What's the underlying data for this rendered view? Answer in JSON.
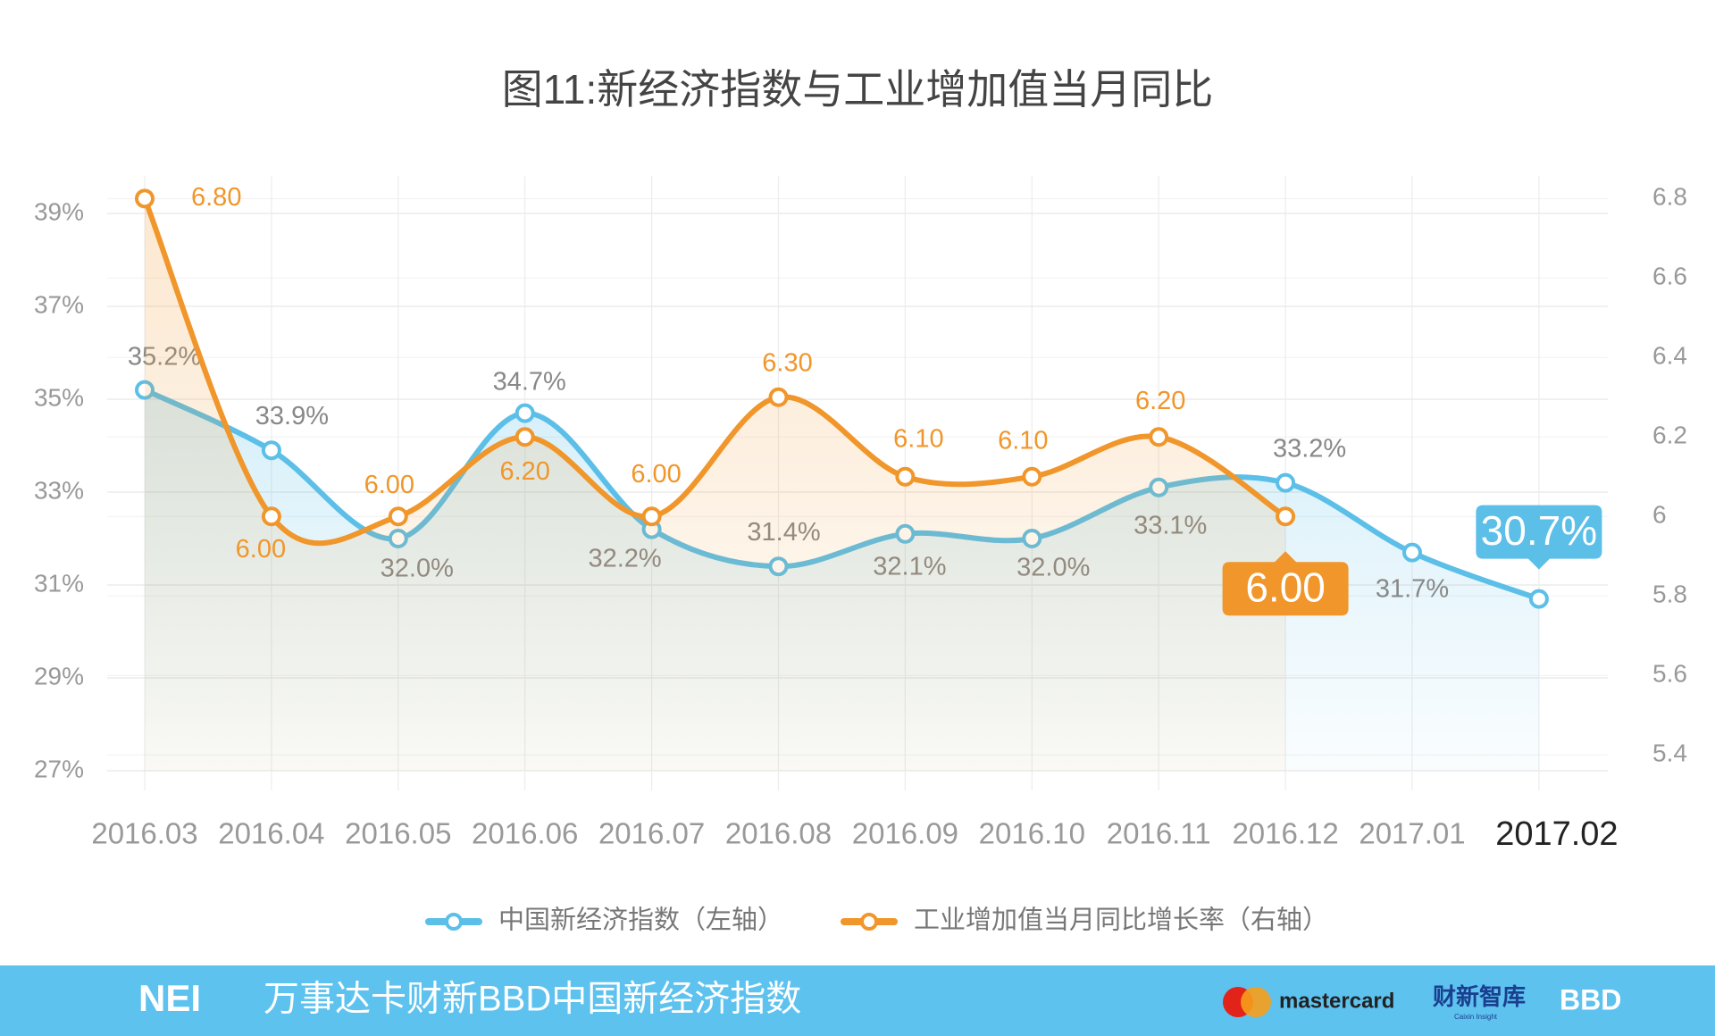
{
  "chart_data": {
    "type": "line",
    "title": "图11:新经济指数与工业增加值当月同比",
    "categories": [
      "2016.03",
      "2016.04",
      "2016.05",
      "2016.06",
      "2016.07",
      "2016.08",
      "2016.09",
      "2016.10",
      "2016.11",
      "2016.12",
      "2017.01",
      "2017.02"
    ],
    "ylim": [
      27,
      39.8
    ],
    "yticks": [
      {
        "value": 27,
        "label": "27%"
      },
      {
        "value": 29,
        "label": "29%"
      },
      {
        "value": 31,
        "label": "31%"
      },
      {
        "value": 33,
        "label": "33%"
      },
      {
        "value": 35,
        "label": "35%"
      },
      {
        "value": 37,
        "label": "37%"
      },
      {
        "value": 39,
        "label": "39%"
      }
    ],
    "y2lim": [
      5.36,
      6.856
    ],
    "y2ticks": [
      5.4,
      5.6,
      5.8,
      6,
      6.2,
      6.4,
      6.6,
      6.8
    ],
    "grid": true,
    "legend": "bottom",
    "series": [
      {
        "name": "中国新经济指数（左轴）",
        "color": "#5bbfe8",
        "axis": "y",
        "values": [
          35.2,
          33.9,
          32.0,
          34.7,
          32.2,
          31.4,
          32.1,
          32.0,
          33.1,
          33.2,
          31.7,
          30.7
        ],
        "value_labels": [
          "35.2%",
          "33.9%",
          "32.0%",
          "34.7%",
          "32.2%",
          "31.4%",
          "32.1%",
          "32.0%",
          "33.1%",
          "33.2%",
          "31.7%",
          "30.7%"
        ]
      },
      {
        "name": "工业增加值当月同比增长率（右轴）",
        "color": "#f0962a",
        "axis": "y2",
        "values": [
          6.8,
          6.0,
          6.0,
          6.2,
          6.0,
          6.3,
          6.1,
          6.1,
          6.2,
          6.0,
          null,
          null
        ],
        "value_labels": [
          "6.80",
          "6.00",
          "6.00",
          "6.20",
          "6.00",
          "6.30",
          "6.10",
          "6.10",
          "6.20",
          "6.00",
          null,
          null
        ]
      }
    ]
  },
  "footer": {
    "title": "万事达卡财新BBD中国新经济指数",
    "logos": [
      "NEI",
      "mastercard",
      "财新智库",
      "Caixin Insight",
      "BBD"
    ]
  }
}
